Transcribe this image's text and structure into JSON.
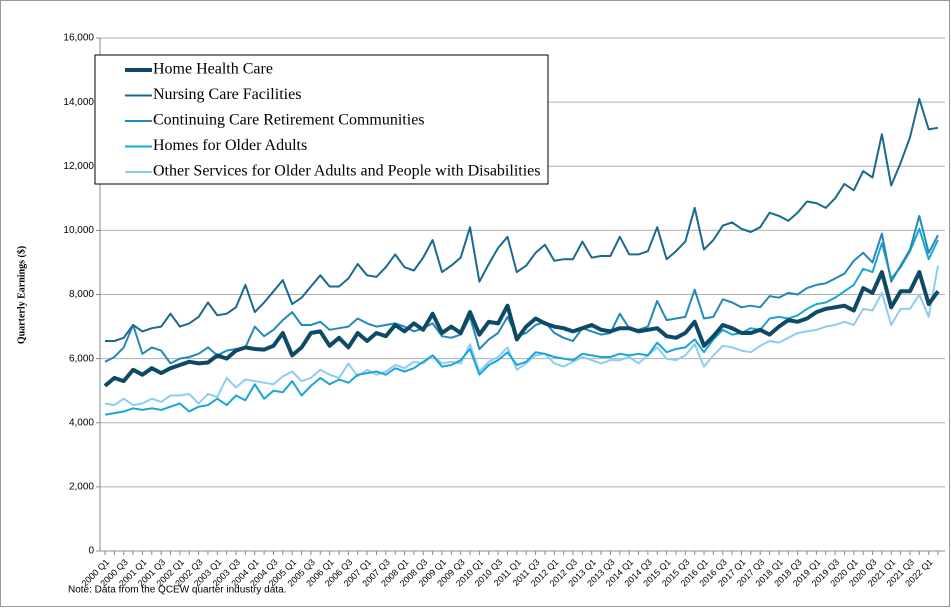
{
  "chart_data": {
    "type": "line",
    "y_label": "Quarterly Earnings ($)",
    "note": "Note: Data from the QCEW quarter industry data.",
    "categories": [
      "2000 Q1",
      null,
      "2000 Q3",
      null,
      "2001 Q1",
      null,
      "2001 Q3",
      null,
      "2002 Q1",
      null,
      "2002 Q3",
      null,
      "2003 Q1",
      null,
      "2003 Q3",
      null,
      "2004 Q1",
      null,
      "2004 Q3",
      null,
      "2005 Q1",
      null,
      "2005 Q3",
      null,
      "2006 Q1",
      null,
      "2006 Q3",
      null,
      "2007 Q1",
      null,
      "2007 Q3",
      null,
      "2008 Q1",
      null,
      "2008 Q3",
      null,
      "2009 Q1",
      null,
      "2009 Q3",
      null,
      "2010 Q1",
      null,
      "2010 Q3",
      null,
      "2011 Q1",
      null,
      "2011 Q3",
      null,
      "2012 Q1",
      null,
      "2012 Q3",
      null,
      "2013 Q1",
      null,
      "2013 Q3",
      null,
      "2014 Q1",
      null,
      "2014 Q3",
      null,
      "2015 Q1",
      null,
      "2015 Q3",
      null,
      "2016 Q1",
      null,
      "2016 Q3",
      null,
      "2017 Q1",
      null,
      "2017 Q3",
      null,
      "2018 Q1",
      null,
      "2018 Q3",
      null,
      "2019 Q1",
      null,
      "2019 Q3",
      null,
      "2020 Q1",
      null,
      "2020 Q3",
      null,
      "2021 Q1",
      null,
      "2021 Q3",
      null,
      "2022 Q1",
      null
    ],
    "series": [
      {
        "name": "Home Health Care",
        "color": "#0e4a66",
        "width": 4,
        "values": [
          5150,
          5400,
          5300,
          5650,
          5500,
          5700,
          5550,
          5700,
          5800,
          5900,
          5850,
          5880,
          6100,
          6000,
          6250,
          6350,
          6300,
          6280,
          6400,
          6800,
          6100,
          6350,
          6800,
          6850,
          6400,
          6650,
          6350,
          6800,
          6550,
          6800,
          6700,
          7050,
          6850,
          7100,
          6900,
          7400,
          6800,
          7000,
          6800,
          7450,
          6750,
          7150,
          7100,
          7650,
          6600,
          7000,
          7250,
          7100,
          7000,
          6950,
          6850,
          6950,
          7050,
          6900,
          6850,
          6950,
          6950,
          6850,
          6900,
          6950,
          6700,
          6650,
          6800,
          7150,
          6400,
          6700,
          7050,
          6950,
          6800,
          6800,
          6900,
          6750,
          7000,
          7200,
          7150,
          7250,
          7450,
          7550,
          7600,
          7650,
          7500,
          8200,
          8050,
          8700,
          7600,
          8100,
          8100,
          8700,
          7700,
          8100
        ]
      },
      {
        "name": "Nursing Care Facilities",
        "color": "#1a6a8f",
        "width": 2,
        "values": [
          6550,
          6550,
          6650,
          7050,
          6850,
          6950,
          7000,
          7400,
          7000,
          7100,
          7300,
          7750,
          7350,
          7400,
          7600,
          8300,
          7450,
          7750,
          8100,
          8450,
          7700,
          7900,
          8250,
          8600,
          8250,
          8250,
          8500,
          8950,
          8600,
          8550,
          8850,
          9250,
          8850,
          8750,
          9150,
          9700,
          8700,
          8900,
          9150,
          10100,
          8400,
          8950,
          9450,
          9800,
          8700,
          8900,
          9300,
          9550,
          9050,
          9100,
          9100,
          9650,
          9150,
          9200,
          9200,
          9800,
          9250,
          9250,
          9350,
          10100,
          9100,
          9350,
          9650,
          10700,
          9400,
          9700,
          10150,
          10250,
          10050,
          9950,
          10100,
          10550,
          10450,
          10300,
          10550,
          10900,
          10850,
          10700,
          11000,
          11450,
          11250,
          11850,
          11650,
          13000,
          11400,
          12100,
          12900,
          14100,
          13150,
          13200
        ]
      },
      {
        "name": "Continuing Care Retirement Communities",
        "color": "#2389b8",
        "width": 2,
        "values": [
          5900,
          6050,
          6350,
          7050,
          6150,
          6350,
          6250,
          5850,
          6000,
          6050,
          6150,
          6350,
          6100,
          6250,
          6300,
          6350,
          7000,
          6700,
          6900,
          7200,
          7450,
          7050,
          7050,
          7150,
          6900,
          6950,
          7000,
          7250,
          7100,
          7000,
          7050,
          7100,
          7000,
          6850,
          6950,
          7100,
          6700,
          6650,
          6750,
          7300,
          6300,
          6600,
          6800,
          7300,
          6700,
          6800,
          7050,
          7150,
          6800,
          6650,
          6550,
          6950,
          6850,
          6750,
          6800,
          7400,
          6950,
          6900,
          7000,
          7800,
          7200,
          7250,
          7300,
          8150,
          7250,
          7300,
          7850,
          7750,
          7600,
          7650,
          7600,
          7950,
          7900,
          8050,
          8000,
          8200,
          8300,
          8350,
          8500,
          8650,
          9050,
          9300,
          9000,
          9900,
          8400,
          8900,
          9400,
          10450,
          9300,
          9850
        ]
      },
      {
        "name": "Homes for Older Adults",
        "color": "#1aa5d8",
        "width": 2,
        "values": [
          4250,
          4300,
          4350,
          4450,
          4400,
          4450,
          4400,
          4500,
          4600,
          4350,
          4500,
          4550,
          4750,
          4550,
          4850,
          4700,
          5200,
          4750,
          5000,
          4950,
          5300,
          4850,
          5150,
          5400,
          5200,
          5350,
          5250,
          5500,
          5550,
          5600,
          5500,
          5700,
          5600,
          5700,
          5900,
          6100,
          5750,
          5800,
          5950,
          6300,
          5500,
          5800,
          5950,
          6200,
          5800,
          5900,
          6200,
          6150,
          6050,
          6000,
          5950,
          6150,
          6100,
          6050,
          6050,
          6150,
          6100,
          6150,
          6100,
          6500,
          6200,
          6300,
          6350,
          6600,
          6200,
          6600,
          6900,
          6750,
          6800,
          6950,
          6900,
          7250,
          7300,
          7250,
          7350,
          7550,
          7700,
          7750,
          7900,
          8100,
          8300,
          8800,
          8700,
          9600,
          8500,
          8850,
          9350,
          10050,
          9100,
          9700
        ]
      },
      {
        "name": "Other Services for Older Adults and People with Disabilities",
        "color": "#8fcdee",
        "width": 2,
        "values": [
          4600,
          4550,
          4750,
          4550,
          4600,
          4750,
          4650,
          4850,
          4850,
          4900,
          4600,
          4900,
          4800,
          5400,
          5100,
          5350,
          5300,
          5250,
          5200,
          5450,
          5600,
          5300,
          5400,
          5650,
          5500,
          5400,
          5850,
          5450,
          5650,
          5500,
          5600,
          5800,
          5700,
          5900,
          5850,
          6100,
          5850,
          5900,
          5850,
          6450,
          5600,
          5900,
          6050,
          6350,
          5650,
          5850,
          6100,
          6150,
          5850,
          5750,
          5900,
          6050,
          5950,
          5850,
          5950,
          5950,
          6050,
          5850,
          6100,
          6350,
          6000,
          5950,
          6100,
          6450,
          5750,
          6100,
          6400,
          6350,
          6250,
          6200,
          6400,
          6550,
          6500,
          6650,
          6800,
          6850,
          6900,
          7000,
          7050,
          7150,
          7050,
          7550,
          7500,
          8050,
          7050,
          7550,
          7550,
          8000,
          7300,
          8900
        ]
      }
    ],
    "ylim": [
      0,
      16000
    ],
    "yticks": [
      0,
      {
        "value": 2000,
        "label": "2,000"
      },
      {
        "value": 4000,
        "label": "4,000"
      },
      {
        "value": 6000,
        "label": "6,000"
      },
      {
        "value": 8000,
        "label": "8,000"
      },
      {
        "value": 10000,
        "label": "10,000"
      },
      {
        "value": 12000,
        "label": "12,000"
      },
      {
        "value": 14000,
        "label": "14,000"
      },
      {
        "value": 16000,
        "label": "16,000"
      }
    ],
    "grid": true
  }
}
